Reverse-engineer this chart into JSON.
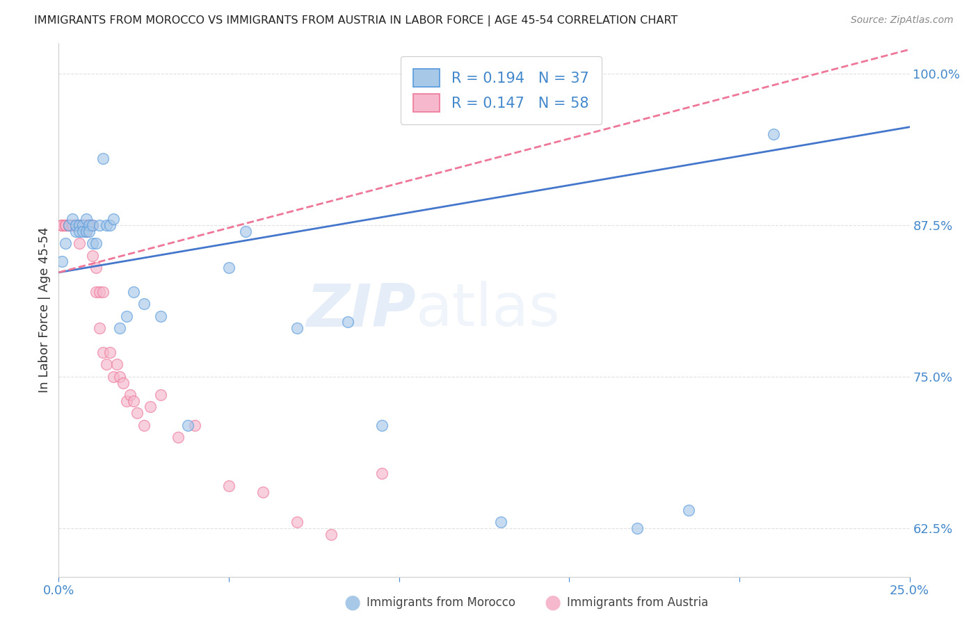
{
  "title": "IMMIGRANTS FROM MOROCCO VS IMMIGRANTS FROM AUSTRIA IN LABOR FORCE | AGE 45-54 CORRELATION CHART",
  "source": "Source: ZipAtlas.com",
  "ylabel": "In Labor Force | Age 45-54",
  "x_min": 0.0,
  "x_max": 0.25,
  "y_min": 0.585,
  "y_max": 1.025,
  "x_ticks": [
    0.0,
    0.05,
    0.1,
    0.15,
    0.2,
    0.25
  ],
  "y_ticks": [
    0.625,
    0.75,
    0.875,
    1.0
  ],
  "y_tick_labels": [
    "62.5%",
    "75.0%",
    "87.5%",
    "100.0%"
  ],
  "morocco_color": "#a8c8e8",
  "austria_color": "#f5b8cc",
  "morocco_edge_color": "#5599dd",
  "austria_edge_color": "#ee7799",
  "line_morocco_color": "#4477cc",
  "line_austria_color": "#ee7799",
  "r_morocco": 0.194,
  "n_morocco": 37,
  "r_austria": 0.147,
  "n_austria": 58,
  "legend_label_morocco": "Immigrants from Morocco",
  "legend_label_austria": "Immigrants from Austria",
  "watermark_zip": "ZIP",
  "watermark_atlas": "atlas",
  "background_color": "#ffffff",
  "grid_color": "#e0e0e0",
  "title_color": "#222222",
  "axis_label_color": "#333333",
  "tick_color": "#4488cc",
  "legend_text_color": "#4488cc",
  "source_color": "#888888",
  "morocco_x": [
    0.001,
    0.002,
    0.003,
    0.004,
    0.005,
    0.005,
    0.006,
    0.006,
    0.007,
    0.007,
    0.008,
    0.008,
    0.009,
    0.009,
    0.01,
    0.01,
    0.011,
    0.012,
    0.013,
    0.014,
    0.015,
    0.016,
    0.018,
    0.02,
    0.022,
    0.025,
    0.03,
    0.038,
    0.05,
    0.055,
    0.07,
    0.085,
    0.095,
    0.13,
    0.17,
    0.185,
    0.21
  ],
  "morocco_y": [
    0.845,
    0.86,
    0.875,
    0.88,
    0.87,
    0.875,
    0.875,
    0.87,
    0.875,
    0.87,
    0.87,
    0.88,
    0.875,
    0.87,
    0.86,
    0.875,
    0.86,
    0.875,
    0.93,
    0.875,
    0.875,
    0.88,
    0.79,
    0.8,
    0.82,
    0.81,
    0.8,
    0.71,
    0.84,
    0.87,
    0.79,
    0.795,
    0.71,
    0.63,
    0.625,
    0.64,
    0.95
  ],
  "austria_x": [
    0.001,
    0.001,
    0.001,
    0.001,
    0.002,
    0.002,
    0.002,
    0.003,
    0.003,
    0.003,
    0.004,
    0.004,
    0.004,
    0.005,
    0.005,
    0.005,
    0.006,
    0.006,
    0.006,
    0.007,
    0.007,
    0.007,
    0.008,
    0.008,
    0.008,
    0.009,
    0.009,
    0.009,
    0.01,
    0.01,
    0.011,
    0.011,
    0.012,
    0.012,
    0.013,
    0.013,
    0.014,
    0.015,
    0.016,
    0.017,
    0.018,
    0.019,
    0.02,
    0.021,
    0.022,
    0.023,
    0.025,
    0.027,
    0.03,
    0.035,
    0.04,
    0.05,
    0.06,
    0.07,
    0.08,
    0.095,
    0.12,
    0.14
  ],
  "austria_y": [
    0.875,
    0.875,
    0.875,
    0.875,
    0.875,
    0.875,
    0.875,
    0.875,
    0.875,
    0.875,
    0.875,
    0.875,
    0.875,
    0.875,
    0.875,
    0.875,
    0.875,
    0.875,
    0.86,
    0.875,
    0.875,
    0.875,
    0.875,
    0.875,
    0.87,
    0.875,
    0.875,
    0.875,
    0.85,
    0.875,
    0.82,
    0.84,
    0.79,
    0.82,
    0.77,
    0.82,
    0.76,
    0.77,
    0.75,
    0.76,
    0.75,
    0.745,
    0.73,
    0.735,
    0.73,
    0.72,
    0.71,
    0.725,
    0.735,
    0.7,
    0.71,
    0.66,
    0.655,
    0.63,
    0.62,
    0.67,
    1.0,
    1.0
  ],
  "morocco_line_x0": 0.0,
  "morocco_line_y0": 0.836,
  "morocco_line_x1": 0.25,
  "morocco_line_y1": 0.956,
  "austria_line_x0": 0.0,
  "austria_line_y0": 0.836,
  "austria_line_x1": 0.25,
  "austria_line_y1": 1.02
}
